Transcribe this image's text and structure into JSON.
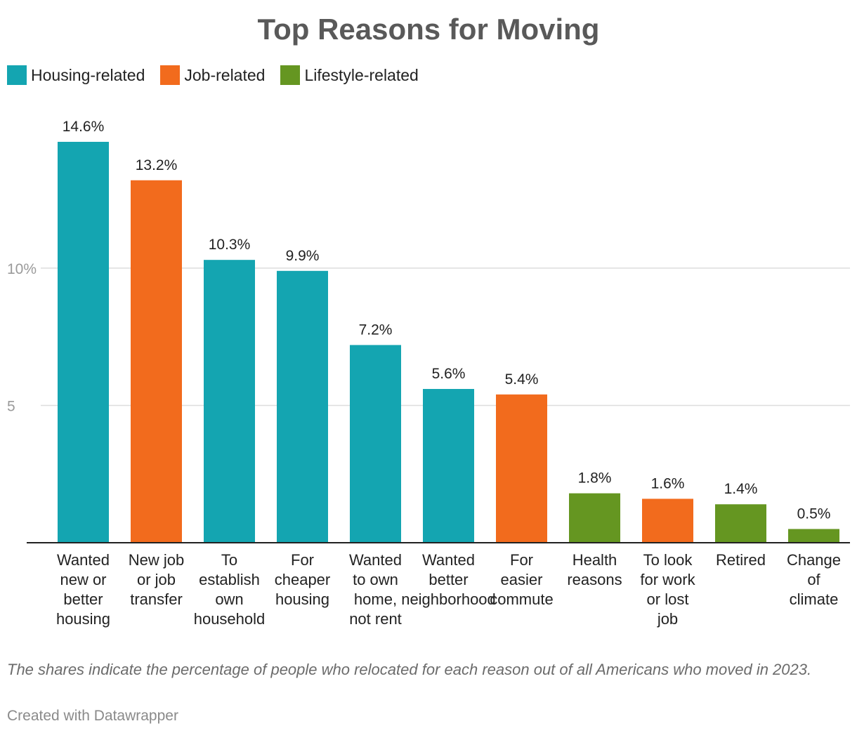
{
  "chart_data": {
    "type": "bar",
    "title": "Top Reasons for Moving",
    "categories": [
      [
        "Wanted",
        "new or",
        "better",
        "housing"
      ],
      [
        "New job",
        "or job",
        "transfer"
      ],
      [
        "To",
        "establish",
        "own",
        "household"
      ],
      [
        "For",
        "cheaper",
        "housing"
      ],
      [
        "Wanted",
        "to own",
        "home,",
        "not rent"
      ],
      [
        "Wanted",
        "better",
        "neighborhood"
      ],
      [
        "For",
        "easier",
        "commute"
      ],
      [
        "Health",
        "reasons"
      ],
      [
        "To look",
        "for work",
        "or lost",
        "job"
      ],
      [
        "Retired"
      ],
      [
        "Change",
        "of",
        "climate"
      ]
    ],
    "values": [
      14.6,
      13.2,
      10.3,
      9.9,
      7.2,
      5.6,
      5.4,
      1.8,
      1.6,
      1.4,
      0.5
    ],
    "value_labels": [
      "14.6%",
      "13.2%",
      "10.3%",
      "9.9%",
      "7.2%",
      "5.6%",
      "5.4%",
      "1.8%",
      "1.6%",
      "1.4%",
      "0.5%"
    ],
    "groups": [
      "Housing-related",
      "Job-related",
      "Housing-related",
      "Housing-related",
      "Housing-related",
      "Housing-related",
      "Job-related",
      "Lifestyle-related",
      "Job-related",
      "Lifestyle-related",
      "Lifestyle-related"
    ],
    "legend": [
      {
        "name": "Housing-related",
        "color": "#14a5b1"
      },
      {
        "name": "Job-related",
        "color": "#f26b1d"
      },
      {
        "name": "Lifestyle-related",
        "color": "#659621"
      }
    ],
    "yticks": [
      {
        "value": 5,
        "label": "5"
      },
      {
        "value": 10,
        "label": "10%"
      }
    ],
    "ylim": [
      0,
      14.6
    ],
    "grid": true,
    "legend_position": "top-left"
  },
  "note": "The shares indicate the percentage of people who relocated for each reason out of all Americans who moved in 2023.",
  "credit": "Created with Datawrapper"
}
